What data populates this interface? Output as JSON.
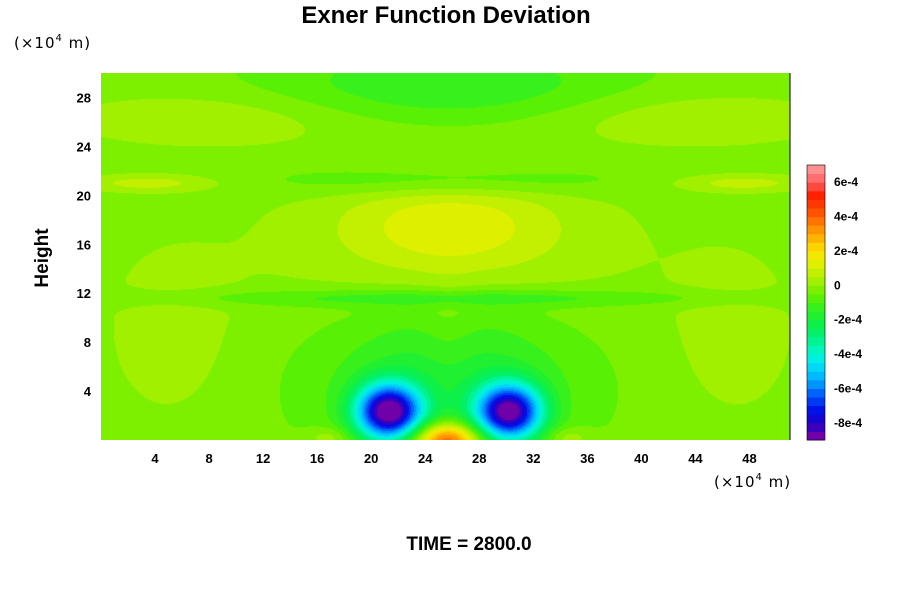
{
  "chart_data": {
    "type": "heatmap",
    "title": "Exner Function Deviation",
    "ylabel": "Height",
    "x_unit": "(×10",
    "x_unit_exp": "4",
    "x_unit_tail": " m)",
    "y_unit": "(×10",
    "y_unit_exp": "4",
    "y_unit_tail": " m)",
    "xlim": [
      0,
      51
    ],
    "ylim": [
      0,
      30
    ],
    "x_ticks": [
      4,
      8,
      12,
      16,
      20,
      24,
      28,
      32,
      36,
      40,
      44,
      48
    ],
    "y_ticks": [
      4,
      8,
      12,
      16,
      20,
      24,
      28
    ],
    "x_tick_labels": [
      "4",
      "8",
      "12",
      "16",
      "20",
      "24",
      "28",
      "32",
      "36",
      "40",
      "44",
      "48"
    ],
    "y_tick_labels": [
      "4",
      "8",
      "12",
      "16",
      "20",
      "24",
      "28"
    ],
    "colorbar": {
      "min": -0.0009,
      "max": 0.0007,
      "ticks": [
        0.0006,
        0.0004,
        0.0002,
        0,
        -0.0002,
        -0.0004,
        -0.0006,
        -0.0008
      ],
      "tick_labels": [
        "6e-4",
        "4e-4",
        "2e-4",
        "0",
        "-2e-4",
        "-4e-4",
        "-6e-4",
        "-8e-4"
      ],
      "levels": 32,
      "colors": [
        "#7000a8",
        "#2000c8",
        "#0010e6",
        "#0048f8",
        "#0090ff",
        "#00c8ff",
        "#00eee8",
        "#00f8b0",
        "#00f070",
        "#10f040",
        "#30f020",
        "#60f000",
        "#98f000",
        "#c8f000",
        "#f0f000",
        "#ffd000",
        "#ffa000",
        "#ff7000",
        "#ff4000",
        "#ff2000",
        "#ff6060",
        "#ff9090"
      ]
    },
    "background_value": -3e-05,
    "features": [
      {
        "name": "low-left",
        "x": 21.3,
        "y": 2.3,
        "value": -0.00083
      },
      {
        "name": "low-right",
        "x": 30.2,
        "y": 2.3,
        "value": -0.0008
      },
      {
        "name": "high-center",
        "x": 25.6,
        "y": 0.0,
        "value": 0.0005
      },
      {
        "name": "upper-positive",
        "x": 25.8,
        "y": 17.5,
        "value": 0.00014
      },
      {
        "name": "band-21-left",
        "x": 3.5,
        "y": 21.0,
        "value": 0.0001
      },
      {
        "name": "band-21-right",
        "x": 47.5,
        "y": 21.0,
        "value": 0.0001
      },
      {
        "name": "band-21-mid",
        "x": 25.5,
        "y": 21.2,
        "value": -0.0001
      },
      {
        "name": "top-negative",
        "x": 25.5,
        "y": 29.0,
        "value": -0.00012
      }
    ],
    "grid": false,
    "legend": "colorbar-right",
    "time_label": "TIME = 2800.0"
  }
}
